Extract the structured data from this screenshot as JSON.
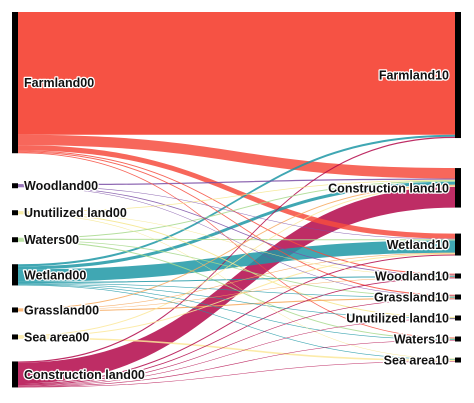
{
  "sankey": {
    "left_nodes": [
      {
        "id": "Farmland00",
        "label": "Farmland00"
      },
      {
        "id": "Woodland00",
        "label": "Woodland00"
      },
      {
        "id": "Unutilized land00",
        "label": "Unutilized land00"
      },
      {
        "id": "Waters00",
        "label": "Waters00"
      },
      {
        "id": "Wetland00",
        "label": "Wetland00"
      },
      {
        "id": "Grassland00",
        "label": "Grassland00"
      },
      {
        "id": "Sea area00",
        "label": "Sea area00"
      },
      {
        "id": "Construction land00",
        "label": "Construction land00"
      }
    ],
    "right_nodes": [
      {
        "id": "Farmland10",
        "label": "Farmland10"
      },
      {
        "id": "Construction land10",
        "label": "Construction land10"
      },
      {
        "id": "Wetland10",
        "label": "Wetland10"
      },
      {
        "id": "Woodland10",
        "label": "Woodland10"
      },
      {
        "id": "Grassland10",
        "label": "Grassland10"
      },
      {
        "id": "Unutilized land10",
        "label": "Unutilized land10"
      },
      {
        "id": "Waters10",
        "label": "Waters10"
      },
      {
        "id": "Sea area10",
        "label": "Sea area10"
      }
    ],
    "source_colors": {
      "Farmland00": "#f64c3e",
      "Woodland00": "#7b4fa6",
      "Unutilized land00": "#f4e58a",
      "Waters00": "#a8d98d",
      "Wetland00": "#1f98a6",
      "Grassland00": "#f6a85c",
      "Sea area00": "#fbe79a",
      "Construction land00": "#b3084a"
    },
    "links": [
      {
        "source": "Farmland00",
        "target": "Farmland10",
        "value": 118
      },
      {
        "source": "Farmland00",
        "target": "Construction land10",
        "value": 10
      },
      {
        "source": "Farmland00",
        "target": "Wetland10",
        "value": 5
      },
      {
        "source": "Farmland00",
        "target": "Woodland10",
        "value": 1
      },
      {
        "source": "Farmland00",
        "target": "Grassland10",
        "value": 1
      },
      {
        "source": "Farmland00",
        "target": "Waters10",
        "value": 0.8
      },
      {
        "source": "Woodland00",
        "target": "Construction land10",
        "value": 1.2
      },
      {
        "source": "Woodland00",
        "target": "Woodland10",
        "value": 0.8
      },
      {
        "source": "Woodland00",
        "target": "Wetland10",
        "value": 0.5
      },
      {
        "source": "Woodland00",
        "target": "Grassland10",
        "value": 0.5
      },
      {
        "source": "Unutilized land00",
        "target": "Construction land10",
        "value": 0.8
      },
      {
        "source": "Unutilized land00",
        "target": "Unutilized land10",
        "value": 1
      },
      {
        "source": "Unutilized land00",
        "target": "Woodland10",
        "value": 0.5
      },
      {
        "source": "Unutilized land00",
        "target": "Sea area10",
        "value": 0.5
      },
      {
        "source": "Waters00",
        "target": "Construction land10",
        "value": 1
      },
      {
        "source": "Waters00",
        "target": "Wetland10",
        "value": 1
      },
      {
        "source": "Waters00",
        "target": "Grassland10",
        "value": 0.8
      },
      {
        "source": "Waters00",
        "target": "Waters10",
        "value": 1
      },
      {
        "source": "Wetland00",
        "target": "Farmland10",
        "value": 2
      },
      {
        "source": "Wetland00",
        "target": "Construction land10",
        "value": 3
      },
      {
        "source": "Wetland00",
        "target": "Wetland10",
        "value": 12
      },
      {
        "source": "Wetland00",
        "target": "Woodland10",
        "value": 1
      },
      {
        "source": "Wetland00",
        "target": "Grassland10",
        "value": 0.6
      },
      {
        "source": "Wetland00",
        "target": "Unutilized land10",
        "value": 0.6
      },
      {
        "source": "Wetland00",
        "target": "Waters10",
        "value": 0.6
      },
      {
        "source": "Wetland00",
        "target": "Sea area10",
        "value": 0.6
      },
      {
        "source": "Grassland00",
        "target": "Construction land10",
        "value": 1
      },
      {
        "source": "Grassland00",
        "target": "Grassland10",
        "value": 1
      },
      {
        "source": "Grassland00",
        "target": "Wetland10",
        "value": 0.6
      },
      {
        "source": "Grassland00",
        "target": "Woodland10",
        "value": 0.4
      },
      {
        "source": "Sea area00",
        "target": "Construction land10",
        "value": 1
      },
      {
        "source": "Sea area00",
        "target": "Wetland10",
        "value": 1
      },
      {
        "source": "Sea area00",
        "target": "Sea area10",
        "value": 1.5
      },
      {
        "source": "Construction land00",
        "target": "Construction land10",
        "value": 20
      },
      {
        "source": "Construction land00",
        "target": "Farmland10",
        "value": 1.2
      },
      {
        "source": "Construction land00",
        "target": "Wetland10",
        "value": 1
      },
      {
        "source": "Construction land00",
        "target": "Woodland10",
        "value": 0.8
      },
      {
        "source": "Construction land00",
        "target": "Grassland10",
        "value": 0.5
      },
      {
        "source": "Construction land00",
        "target": "Unutilized land10",
        "value": 0.5
      },
      {
        "source": "Construction land00",
        "target": "Waters10",
        "value": 0.5
      },
      {
        "source": "Construction land00",
        "target": "Sea area10",
        "value": 0.5
      }
    ]
  }
}
